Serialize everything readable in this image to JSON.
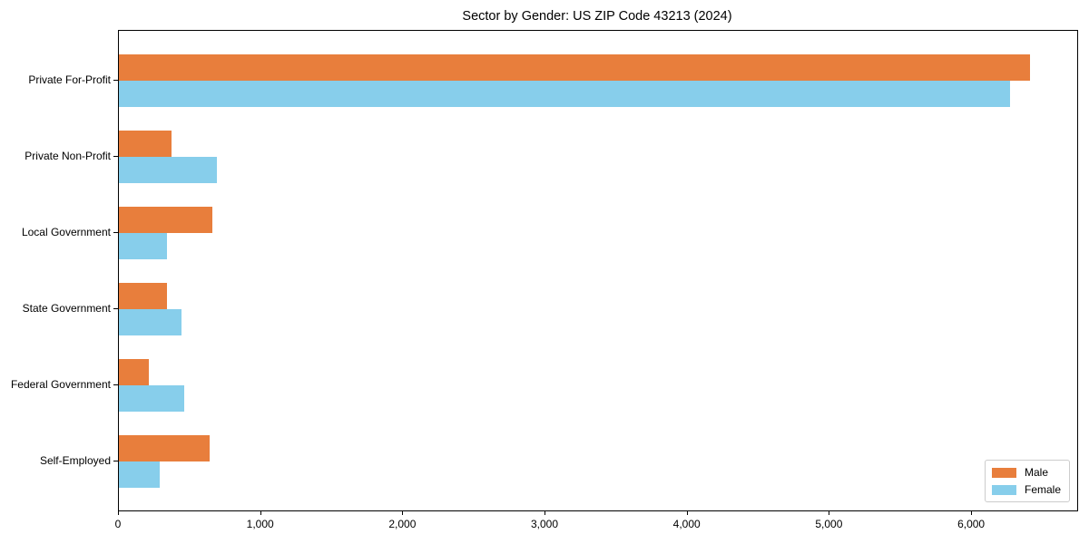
{
  "chart_data": {
    "type": "bar",
    "orientation": "horizontal",
    "title": "Sector by Gender: US ZIP Code 43213 (2024)",
    "categories": [
      "Private For-Profit",
      "Private Non-Profit",
      "Local Government",
      "State Government",
      "Federal Government",
      "Self-Employed"
    ],
    "series": [
      {
        "name": "Male",
        "color": "#e87e3c",
        "values": [
          6410,
          370,
          655,
          335,
          210,
          640
        ]
      },
      {
        "name": "Female",
        "color": "#87ceeb",
        "values": [
          6270,
          690,
          335,
          440,
          460,
          290
        ]
      }
    ],
    "xlabel": "",
    "ylabel": "",
    "xlim": [
      0,
      6740
    ],
    "xticks": [
      0,
      1000,
      2000,
      3000,
      4000,
      5000,
      6000
    ],
    "xtick_labels": [
      "0",
      "1,000",
      "2,000",
      "3,000",
      "4,000",
      "5,000",
      "6,000"
    ],
    "grid": false,
    "legend_position": "lower right",
    "spine_color": "#000000",
    "background_color": "#ffffff"
  }
}
